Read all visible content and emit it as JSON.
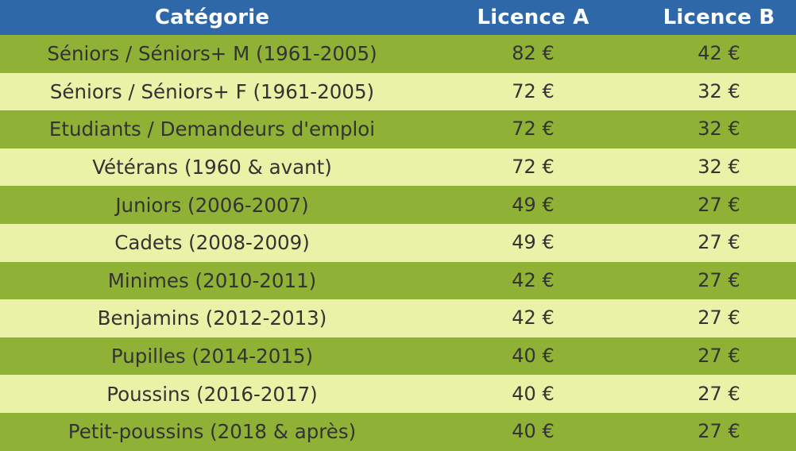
{
  "table": {
    "headers": {
      "category": "Catégorie",
      "licence_a": "Licence A",
      "licence_b": "Licence B"
    },
    "rows": [
      {
        "category": "Séniors / Séniors+ M (1961-2005)",
        "licence_a": "82 €",
        "licence_b": "42 €"
      },
      {
        "category": "Séniors / Séniors+ F (1961-2005)",
        "licence_a": "72 €",
        "licence_b": "32 €"
      },
      {
        "category": "Etudiants / Demandeurs d'emploi",
        "licence_a": "72 €",
        "licence_b": "32 €"
      },
      {
        "category": "Vétérans (1960 & avant)",
        "licence_a": "72 €",
        "licence_b": "32 €"
      },
      {
        "category": "Juniors (2006-2007)",
        "licence_a": "49 €",
        "licence_b": "27 €"
      },
      {
        "category": "Cadets (2008-2009)",
        "licence_a": "49 €",
        "licence_b": "27 €"
      },
      {
        "category": "Minimes (2010-2011)",
        "licence_a": "42 €",
        "licence_b": "27 €"
      },
      {
        "category": "Benjamins (2012-2013)",
        "licence_a": "42 €",
        "licence_b": "27 €"
      },
      {
        "category": "Pupilles (2014-2015)",
        "licence_a": "40 €",
        "licence_b": "27 €"
      },
      {
        "category": "Poussins (2016-2017)",
        "licence_a": "40 €",
        "licence_b": "27 €"
      },
      {
        "category": "Petit-poussins (2018 & après)",
        "licence_a": "40 €",
        "licence_b": "27 €"
      }
    ]
  },
  "colors": {
    "header_bg": "#2e68a9",
    "row_dark": "#8fb136",
    "row_light": "#e9f2a7",
    "text": "#333333"
  }
}
